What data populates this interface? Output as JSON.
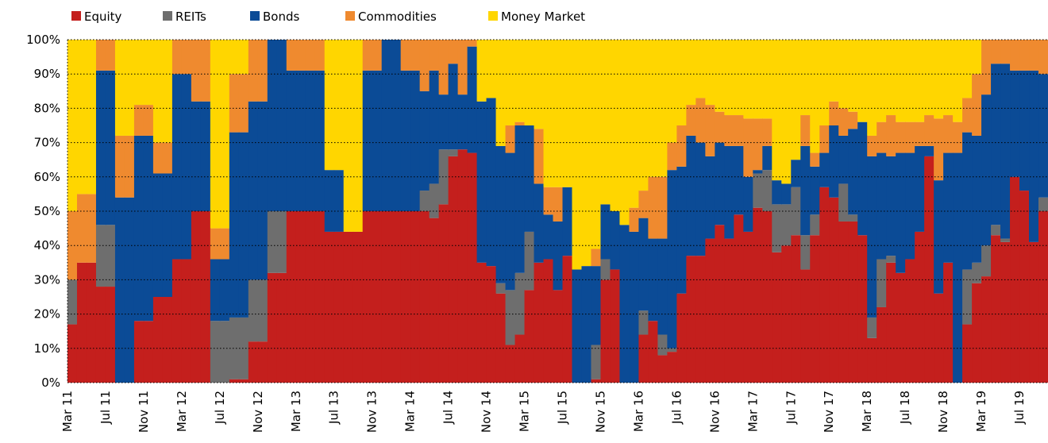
{
  "chart_data": {
    "type": "stacked_step_area",
    "categories": [
      "Mar 11",
      null,
      null,
      null,
      "Jul 11",
      null,
      null,
      null,
      "Nov 11",
      null,
      null,
      null,
      "Mar 12",
      null,
      null,
      null,
      "Jul 12",
      null,
      null,
      null,
      "Nov 12",
      null,
      null,
      null,
      "Mar 13",
      null,
      null,
      null,
      "Jul 13",
      null,
      null,
      null,
      "Nov 13",
      null,
      null,
      null,
      "Mar 14",
      null,
      null,
      null,
      "Jul 14",
      null,
      null,
      null,
      "Nov 14",
      null,
      null,
      null,
      "Mar 15",
      null,
      null,
      null,
      "Jul 15",
      null,
      null,
      null,
      "Nov 15",
      null,
      null,
      null,
      "Mar 16",
      null,
      null,
      null,
      "Jul 16",
      null,
      null,
      null,
      "Nov 16",
      null,
      null,
      null,
      "Mar 17",
      null,
      null,
      null,
      "Jul 17",
      null,
      null,
      null,
      "Nov 17",
      null,
      null,
      null,
      "Mar 18",
      null,
      null,
      null,
      "Jul 18",
      null,
      null,
      null,
      "Nov 18",
      null,
      null,
      null,
      "Mar 19",
      null,
      null,
      null,
      "Jul 19",
      null,
      null
    ],
    "series": [
      {
        "name": "Equity",
        "color": "#c41f1d",
        "values": [
          17,
          35,
          35,
          28,
          28,
          0,
          0,
          18,
          18,
          25,
          25,
          36,
          36,
          50,
          50,
          0,
          0,
          1,
          1,
          12,
          12,
          32,
          32,
          50,
          50,
          50,
          50,
          44,
          44,
          44,
          44,
          50,
          50,
          50,
          50,
          50,
          50,
          50,
          48,
          52,
          66,
          68,
          67,
          35,
          34,
          26,
          11,
          14,
          27,
          35,
          36,
          27,
          37,
          0,
          0,
          1,
          30,
          33,
          0,
          0,
          14,
          18,
          8,
          9,
          26,
          37,
          37,
          42,
          46,
          42,
          49,
          44,
          51,
          50,
          38,
          40,
          43,
          33,
          43,
          57,
          54,
          47,
          47,
          43,
          13,
          22,
          35,
          32,
          36,
          44,
          66,
          26,
          35,
          0,
          17,
          29,
          31,
          43,
          41,
          60,
          56,
          41,
          50
        ]
      },
      {
        "name": "REITs",
        "color": "#6e6e6e",
        "values": [
          13,
          0,
          0,
          18,
          18,
          0,
          0,
          0,
          0,
          0,
          0,
          0,
          0,
          0,
          0,
          18,
          18,
          18,
          18,
          18,
          18,
          18,
          18,
          0,
          0,
          0,
          0,
          0,
          0,
          0,
          0,
          0,
          0,
          0,
          0,
          0,
          0,
          6,
          10,
          16,
          2,
          0,
          0,
          0,
          0,
          3,
          16,
          18,
          17,
          0,
          0,
          0,
          0,
          0,
          0,
          10,
          6,
          0,
          0,
          0,
          7,
          0,
          6,
          1,
          0,
          0,
          0,
          0,
          0,
          0,
          0,
          0,
          10,
          12,
          14,
          12,
          14,
          10,
          6,
          0,
          0,
          11,
          2,
          0,
          6,
          14,
          2,
          0,
          0,
          0,
          0,
          0,
          0,
          0,
          16,
          6,
          9,
          3,
          1,
          0,
          0,
          0,
          4
        ]
      },
      {
        "name": "Bonds",
        "color": "#0b4b96",
        "values": [
          0,
          0,
          0,
          45,
          45,
          54,
          54,
          54,
          54,
          36,
          36,
          54,
          54,
          32,
          32,
          18,
          18,
          54,
          54,
          52,
          52,
          50,
          50,
          41,
          41,
          41,
          41,
          18,
          18,
          0,
          0,
          41,
          41,
          50,
          50,
          41,
          41,
          29,
          33,
          16,
          25,
          16,
          31,
          47,
          49,
          40,
          40,
          43,
          31,
          23,
          13,
          20,
          20,
          33,
          34,
          23,
          16,
          17,
          46,
          44,
          27,
          24,
          28,
          52,
          37,
          35,
          33,
          24,
          24,
          27,
          20,
          16,
          1,
          7,
          7,
          6,
          8,
          26,
          14,
          10,
          21,
          14,
          25,
          33,
          47,
          31,
          29,
          35,
          31,
          25,
          3,
          33,
          32,
          67,
          40,
          37,
          44,
          47,
          51,
          31,
          35,
          50,
          36
        ]
      },
      {
        "name": "Commodities",
        "color": "#ef8a2f",
        "values": [
          20,
          20,
          20,
          9,
          9,
          18,
          18,
          9,
          9,
          9,
          9,
          10,
          10,
          18,
          18,
          9,
          9,
          17,
          17,
          18,
          18,
          0,
          0,
          9,
          9,
          9,
          9,
          0,
          0,
          0,
          0,
          9,
          9,
          0,
          0,
          9,
          9,
          15,
          9,
          16,
          7,
          16,
          2,
          0,
          0,
          0,
          8,
          1,
          0,
          16,
          8,
          10,
          0,
          0,
          0,
          5,
          0,
          0,
          0,
          7,
          8,
          18,
          18,
          8,
          12,
          9,
          13,
          15,
          9,
          9,
          9,
          17,
          15,
          8,
          0,
          0,
          0,
          9,
          4,
          8,
          7,
          8,
          5,
          0,
          6,
          9,
          12,
          9,
          9,
          7,
          9,
          18,
          11,
          9,
          10,
          18,
          16,
          7,
          7,
          9,
          9,
          9,
          10
        ]
      },
      {
        "name": "Money Market",
        "color": "#ffd600",
        "values": [
          50,
          45,
          45,
          0,
          0,
          28,
          28,
          19,
          19,
          30,
          30,
          0,
          0,
          0,
          0,
          55,
          55,
          10,
          10,
          0,
          0,
          0,
          0,
          0,
          0,
          0,
          0,
          38,
          38,
          56,
          56,
          0,
          0,
          0,
          0,
          0,
          0,
          0,
          0,
          0,
          0,
          0,
          0,
          18,
          17,
          31,
          25,
          24,
          25,
          26,
          43,
          43,
          43,
          67,
          66,
          61,
          48,
          50,
          54,
          49,
          44,
          40,
          40,
          30,
          25,
          19,
          17,
          19,
          21,
          22,
          22,
          23,
          23,
          23,
          41,
          42,
          35,
          22,
          33,
          25,
          18,
          20,
          21,
          24,
          28,
          24,
          22,
          24,
          24,
          24,
          22,
          23,
          22,
          24,
          17,
          10,
          0,
          0,
          0,
          0,
          0,
          0,
          0
        ]
      }
    ],
    "ylim": [
      0,
      100
    ],
    "yticks": [
      {
        "value": 0,
        "label": "0%"
      },
      {
        "value": 10,
        "label": "10%"
      },
      {
        "value": 20,
        "label": "20%"
      },
      {
        "value": 30,
        "label": "30%"
      },
      {
        "value": 40,
        "label": "40%"
      },
      {
        "value": 50,
        "label": "50%"
      },
      {
        "value": 60,
        "label": "60%"
      },
      {
        "value": 70,
        "label": "70%"
      },
      {
        "value": 80,
        "label": "80%"
      },
      {
        "value": 90,
        "label": "90%"
      },
      {
        "value": 100,
        "label": "100%"
      }
    ],
    "grid": true,
    "legend": "top"
  }
}
